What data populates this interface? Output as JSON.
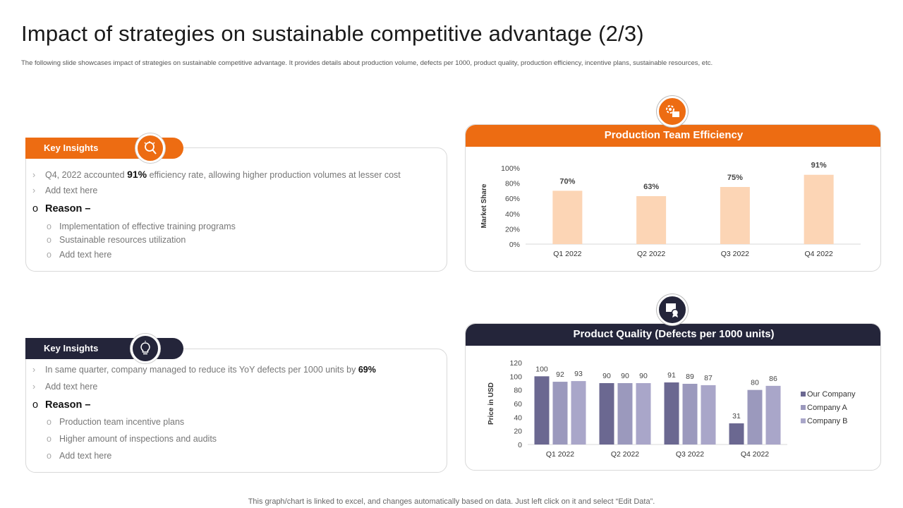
{
  "header": {
    "title": "Impact of strategies on sustainable competitive advantage (2/3)",
    "subtitle": "The following slide showcases impact of strategies on sustainable competitive advantage. It provides details about production volume, defects per 1000, product quality, production efficiency, incentive plans, sustainable resources, etc."
  },
  "insights_top": {
    "pill_label": "Key Insights",
    "icon": "lightbulb-icon",
    "line1_pre": "Q4, 2022 accounted ",
    "line1_bold": "91%",
    "line1_post": " efficiency rate, allowing higher production volumes at lesser cost",
    "line2": "Add text here",
    "reason": "Reason –",
    "reasons": [
      "Implementation of effective training programs",
      "Sustainable resources utilization",
      "Add text here"
    ]
  },
  "insights_bottom": {
    "pill_label": "Key Insights",
    "icon": "lightbulb-icon",
    "line1_pre": "In same quarter, company managed to reduce its YoY defects per 1000 units by ",
    "line1_bold": "69%",
    "line2": "Add text here",
    "reason": "Reason –",
    "reasons": [
      "Production team incentive plans",
      "Higher amount of inspections and audits",
      "Add text here"
    ]
  },
  "colors": {
    "accent": "#ed6c12",
    "dark": "#24253a",
    "bar_peach": "#fcd5b5",
    "our_company": "#6b6891",
    "company_a": "#9b99bd",
    "company_b": "#a9a6c9"
  },
  "footer": "This graph/chart is linked to excel, and changes automatically based on data. Just left click on it and select “Edit Data”.",
  "chart_data": [
    {
      "type": "bar",
      "title": "Production Team Efficiency",
      "icon": "gear-icon",
      "categories": [
        "Q1 2022",
        "Q2 2022",
        "Q3 2022",
        "Q4 2022"
      ],
      "values": [
        70,
        63,
        75,
        91
      ],
      "value_labels": [
        "70%",
        "63%",
        "75%",
        "91%"
      ],
      "ylabel": "Market Share",
      "yticks": [
        "0%",
        "20%",
        "40%",
        "60%",
        "80%",
        "100%"
      ],
      "ylim": [
        0,
        100
      ]
    },
    {
      "type": "bar",
      "title": "Product Quality (Defects per 1000 units)",
      "icon": "quality-certificate-icon",
      "categories": [
        "Q1 2022",
        "Q2 2022",
        "Q3 2022",
        "Q4 2022"
      ],
      "series": [
        {
          "name": "Our Company",
          "values": [
            100,
            90,
            91,
            31
          ]
        },
        {
          "name": "Company A",
          "values": [
            92,
            90,
            89,
            80
          ]
        },
        {
          "name": "Company B",
          "values": [
            93,
            90,
            87,
            86
          ]
        }
      ],
      "ylabel": "Price in USD",
      "yticks": [
        "0",
        "20",
        "40",
        "60",
        "80",
        "100",
        "120"
      ],
      "ylim": [
        0,
        120
      ],
      "legend": "right"
    }
  ]
}
